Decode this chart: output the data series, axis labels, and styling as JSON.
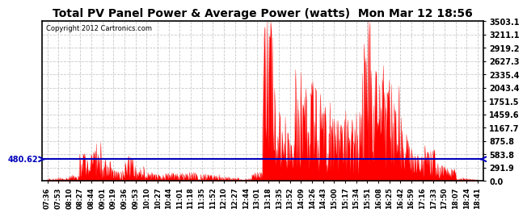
{
  "title": "Total PV Panel Power & Average Power (watts)  Mon Mar 12 18:56",
  "copyright": "Copyright 2012 Cartronics.com",
  "ymax": 3503.1,
  "ymin": 0.0,
  "yticks": [
    0.0,
    291.9,
    583.8,
    875.8,
    1167.7,
    1459.6,
    1751.5,
    2043.4,
    2335.4,
    2627.3,
    2919.2,
    3211.1,
    3503.1
  ],
  "avg_line": 480.62,
  "avg_label": "480.62",
  "fill_color": "#FF0000",
  "line_color": "#FF0000",
  "avg_line_color": "#0000BB",
  "background_color": "#FFFFFF",
  "grid_color": "#BBBBBB",
  "x_labels": [
    "07:36",
    "07:53",
    "08:10",
    "08:27",
    "08:44",
    "09:01",
    "09:19",
    "09:36",
    "09:53",
    "10:10",
    "10:27",
    "10:44",
    "11:01",
    "11:18",
    "11:35",
    "11:52",
    "12:10",
    "12:27",
    "12:44",
    "13:01",
    "13:18",
    "13:35",
    "13:52",
    "14:09",
    "14:26",
    "14:43",
    "15:00",
    "15:17",
    "15:34",
    "15:51",
    "16:08",
    "16:25",
    "16:42",
    "16:59",
    "17:16",
    "17:33",
    "17:50",
    "18:07",
    "18:24",
    "18:41"
  ]
}
